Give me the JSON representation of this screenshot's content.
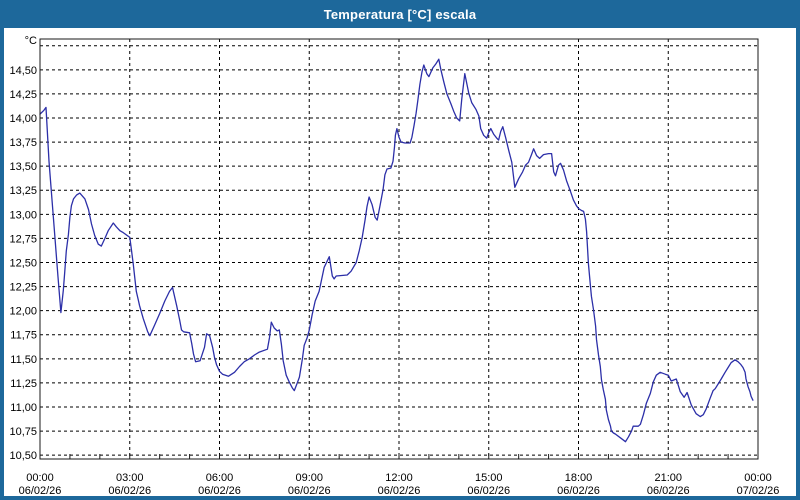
{
  "window": {
    "title": "Temperatura [°C] escala"
  },
  "colors": {
    "title_bar": "#1d689b",
    "frame": "#1d689b",
    "plot_background": "#ffffff",
    "plot_border": "#1a1a1a",
    "grid": "#000000",
    "label": "#000000",
    "line": "#2c2fa8"
  },
  "chart_data": {
    "type": "line",
    "title": "Temperatura [°C] escala",
    "grid": true,
    "legend": "none",
    "y_axis": {
      "unit_label": "°C",
      "min": 10.46,
      "max": 14.82,
      "tick_step": 0.25,
      "label_max": 14.5,
      "label_min": 10.5,
      "grid_max": 14.75,
      "decimal_separator": ","
    },
    "x_axis": {
      "hours_span": 24,
      "major_tick_hours": 3,
      "minor_tick_hours": 1,
      "labels": [
        {
          "time": "00:00",
          "date": "06/02/26"
        },
        {
          "time": "03:00",
          "date": "06/02/26"
        },
        {
          "time": "06:00",
          "date": "06/02/26"
        },
        {
          "time": "09:00",
          "date": "06/02/26"
        },
        {
          "time": "12:00",
          "date": "06/02/26"
        },
        {
          "time": "15:00",
          "date": "06/02/26"
        },
        {
          "time": "18:00",
          "date": "06/02/26"
        },
        {
          "time": "21:00",
          "date": "06/02/26"
        },
        {
          "time": "00:00",
          "date": "07/02/26"
        }
      ]
    },
    "series": [
      {
        "name": "Temperatura",
        "color": "#2c2fa8",
        "points": [
          [
            0.0,
            14.04
          ],
          [
            0.13,
            14.08
          ],
          [
            0.2,
            14.11
          ],
          [
            0.3,
            13.55
          ],
          [
            0.45,
            12.95
          ],
          [
            0.6,
            12.35
          ],
          [
            0.7,
            11.98
          ],
          [
            0.78,
            12.21
          ],
          [
            0.83,
            12.41
          ],
          [
            0.88,
            12.62
          ],
          [
            0.95,
            12.79
          ],
          [
            1.0,
            12.97
          ],
          [
            1.05,
            13.09
          ],
          [
            1.12,
            13.16
          ],
          [
            1.22,
            13.2
          ],
          [
            1.33,
            13.22
          ],
          [
            1.5,
            13.16
          ],
          [
            1.62,
            13.05
          ],
          [
            1.72,
            12.9
          ],
          [
            1.83,
            12.78
          ],
          [
            1.95,
            12.69
          ],
          [
            2.05,
            12.67
          ],
          [
            2.17,
            12.75
          ],
          [
            2.28,
            12.83
          ],
          [
            2.45,
            12.91
          ],
          [
            2.55,
            12.87
          ],
          [
            2.67,
            12.83
          ],
          [
            2.78,
            12.81
          ],
          [
            3.0,
            12.76
          ],
          [
            3.05,
            12.65
          ],
          [
            3.12,
            12.48
          ],
          [
            3.17,
            12.34
          ],
          [
            3.22,
            12.2
          ],
          [
            3.28,
            12.12
          ],
          [
            3.33,
            12.05
          ],
          [
            3.45,
            11.92
          ],
          [
            3.6,
            11.78
          ],
          [
            3.67,
            11.74
          ],
          [
            3.83,
            11.85
          ],
          [
            4.0,
            11.97
          ],
          [
            4.17,
            12.1
          ],
          [
            4.33,
            12.2
          ],
          [
            4.43,
            12.24
          ],
          [
            4.57,
            12.05
          ],
          [
            4.67,
            11.9
          ],
          [
            4.73,
            11.8
          ],
          [
            4.8,
            11.78
          ],
          [
            5.0,
            11.77
          ],
          [
            5.07,
            11.66
          ],
          [
            5.13,
            11.55
          ],
          [
            5.2,
            11.47
          ],
          [
            5.35,
            11.48
          ],
          [
            5.5,
            11.62
          ],
          [
            5.57,
            11.76
          ],
          [
            5.67,
            11.74
          ],
          [
            5.77,
            11.62
          ],
          [
            5.83,
            11.52
          ],
          [
            5.9,
            11.44
          ],
          [
            6.0,
            11.37
          ],
          [
            6.1,
            11.34
          ],
          [
            6.3,
            11.32
          ],
          [
            6.5,
            11.36
          ],
          [
            6.67,
            11.42
          ],
          [
            6.83,
            11.47
          ],
          [
            7.0,
            11.5
          ],
          [
            7.17,
            11.54
          ],
          [
            7.33,
            11.57
          ],
          [
            7.6,
            11.6
          ],
          [
            7.67,
            11.72
          ],
          [
            7.73,
            11.88
          ],
          [
            7.83,
            11.82
          ],
          [
            7.93,
            11.79
          ],
          [
            8.0,
            11.8
          ],
          [
            8.07,
            11.65
          ],
          [
            8.13,
            11.48
          ],
          [
            8.23,
            11.33
          ],
          [
            8.33,
            11.26
          ],
          [
            8.43,
            11.2
          ],
          [
            8.5,
            11.17
          ],
          [
            8.6,
            11.25
          ],
          [
            8.67,
            11.31
          ],
          [
            8.77,
            11.5
          ],
          [
            8.83,
            11.64
          ],
          [
            8.93,
            11.72
          ],
          [
            9.0,
            11.8
          ],
          [
            9.1,
            11.96
          ],
          [
            9.2,
            12.1
          ],
          [
            9.33,
            12.2
          ],
          [
            9.5,
            12.45
          ],
          [
            9.67,
            12.56
          ],
          [
            9.77,
            12.36
          ],
          [
            9.83,
            12.33
          ],
          [
            9.9,
            12.36
          ],
          [
            10.27,
            12.37
          ],
          [
            10.4,
            12.41
          ],
          [
            10.57,
            12.5
          ],
          [
            10.67,
            12.62
          ],
          [
            10.77,
            12.76
          ],
          [
            10.87,
            12.95
          ],
          [
            10.93,
            13.08
          ],
          [
            11.0,
            13.18
          ],
          [
            11.1,
            13.1
          ],
          [
            11.2,
            12.97
          ],
          [
            11.27,
            12.94
          ],
          [
            11.37,
            13.1
          ],
          [
            11.47,
            13.26
          ],
          [
            11.53,
            13.41
          ],
          [
            11.6,
            13.47
          ],
          [
            11.73,
            13.48
          ],
          [
            11.8,
            13.55
          ],
          [
            11.85,
            13.7
          ],
          [
            11.88,
            13.82
          ],
          [
            11.93,
            13.89
          ],
          [
            12.0,
            13.8
          ],
          [
            12.07,
            13.75
          ],
          [
            12.2,
            13.74
          ],
          [
            12.37,
            13.74
          ],
          [
            12.43,
            13.8
          ],
          [
            12.5,
            13.92
          ],
          [
            12.57,
            14.05
          ],
          [
            12.63,
            14.18
          ],
          [
            12.7,
            14.35
          ],
          [
            12.77,
            14.48
          ],
          [
            12.83,
            14.55
          ],
          [
            12.93,
            14.46
          ],
          [
            13.0,
            14.43
          ],
          [
            13.13,
            14.52
          ],
          [
            13.23,
            14.56
          ],
          [
            13.33,
            14.61
          ],
          [
            13.4,
            14.5
          ],
          [
            13.5,
            14.37
          ],
          [
            13.6,
            14.25
          ],
          [
            13.73,
            14.15
          ],
          [
            13.83,
            14.07
          ],
          [
            13.93,
            14.0
          ],
          [
            14.03,
            13.97
          ],
          [
            14.1,
            14.2
          ],
          [
            14.2,
            14.46
          ],
          [
            14.33,
            14.26
          ],
          [
            14.43,
            14.16
          ],
          [
            14.57,
            14.09
          ],
          [
            14.67,
            14.02
          ],
          [
            14.73,
            13.89
          ],
          [
            14.83,
            13.82
          ],
          [
            14.93,
            13.79
          ],
          [
            15.0,
            13.85
          ],
          [
            15.07,
            13.89
          ],
          [
            15.17,
            13.83
          ],
          [
            15.27,
            13.79
          ],
          [
            15.33,
            13.77
          ],
          [
            15.4,
            13.86
          ],
          [
            15.47,
            13.91
          ],
          [
            15.57,
            13.79
          ],
          [
            15.67,
            13.66
          ],
          [
            15.77,
            13.54
          ],
          [
            15.87,
            13.28
          ],
          [
            16.0,
            13.37
          ],
          [
            16.13,
            13.44
          ],
          [
            16.23,
            13.51
          ],
          [
            16.33,
            13.54
          ],
          [
            16.43,
            13.62
          ],
          [
            16.5,
            13.68
          ],
          [
            16.6,
            13.61
          ],
          [
            16.7,
            13.58
          ],
          [
            16.83,
            13.62
          ],
          [
            17.0,
            13.63
          ],
          [
            17.1,
            13.63
          ],
          [
            17.17,
            13.44
          ],
          [
            17.23,
            13.4
          ],
          [
            17.33,
            13.51
          ],
          [
            17.4,
            13.53
          ],
          [
            17.5,
            13.46
          ],
          [
            17.6,
            13.35
          ],
          [
            17.73,
            13.24
          ],
          [
            17.83,
            13.15
          ],
          [
            17.93,
            13.09
          ],
          [
            18.0,
            13.06
          ],
          [
            18.1,
            13.04
          ],
          [
            18.17,
            13.03
          ],
          [
            18.23,
            12.95
          ],
          [
            18.27,
            12.82
          ],
          [
            18.33,
            12.49
          ],
          [
            18.4,
            12.25
          ],
          [
            18.43,
            12.15
          ],
          [
            18.5,
            12.01
          ],
          [
            18.57,
            11.84
          ],
          [
            18.6,
            11.7
          ],
          [
            18.67,
            11.54
          ],
          [
            18.73,
            11.42
          ],
          [
            18.77,
            11.28
          ],
          [
            18.83,
            11.18
          ],
          [
            18.9,
            11.08
          ],
          [
            18.93,
            10.97
          ],
          [
            19.0,
            10.87
          ],
          [
            19.07,
            10.8
          ],
          [
            19.1,
            10.75
          ],
          [
            19.17,
            10.73
          ],
          [
            19.23,
            10.72
          ],
          [
            19.4,
            10.68
          ],
          [
            19.57,
            10.64
          ],
          [
            19.67,
            10.69
          ],
          [
            19.77,
            10.75
          ],
          [
            19.83,
            10.8
          ],
          [
            20.0,
            10.8
          ],
          [
            20.07,
            10.82
          ],
          [
            20.17,
            10.92
          ],
          [
            20.27,
            11.04
          ],
          [
            20.4,
            11.14
          ],
          [
            20.5,
            11.26
          ],
          [
            20.6,
            11.33
          ],
          [
            20.73,
            11.36
          ],
          [
            20.9,
            11.34
          ],
          [
            21.0,
            11.33
          ],
          [
            21.1,
            11.27
          ],
          [
            21.27,
            11.29
          ],
          [
            21.4,
            11.16
          ],
          [
            21.53,
            11.1
          ],
          [
            21.63,
            11.15
          ],
          [
            21.77,
            11.02
          ],
          [
            21.93,
            10.93
          ],
          [
            22.07,
            10.9
          ],
          [
            22.17,
            10.92
          ],
          [
            22.27,
            10.98
          ],
          [
            22.4,
            11.09
          ],
          [
            22.5,
            11.17
          ],
          [
            22.57,
            11.19
          ],
          [
            22.67,
            11.24
          ],
          [
            22.77,
            11.29
          ],
          [
            22.9,
            11.36
          ],
          [
            23.0,
            11.41
          ],
          [
            23.1,
            11.46
          ],
          [
            23.23,
            11.49
          ],
          [
            23.33,
            11.47
          ],
          [
            23.43,
            11.44
          ],
          [
            23.5,
            11.41
          ],
          [
            23.57,
            11.36
          ],
          [
            23.6,
            11.29
          ],
          [
            23.67,
            11.21
          ],
          [
            23.73,
            11.16
          ],
          [
            23.77,
            11.11
          ],
          [
            23.83,
            11.07
          ]
        ]
      }
    ]
  }
}
